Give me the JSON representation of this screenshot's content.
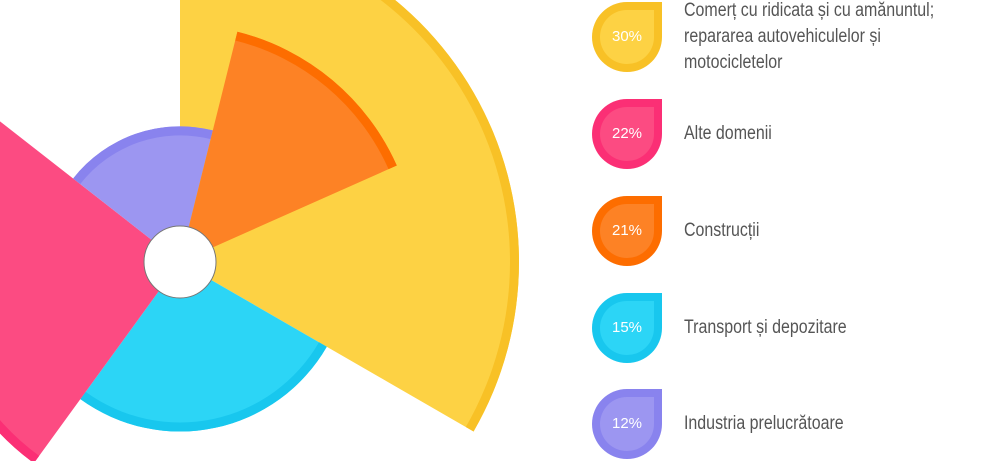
{
  "chart_data": {
    "type": "polar-area",
    "title": "",
    "series": [
      {
        "label": "Comerț cu ridicata și cu amănuntul;\nrepararea autovehiculelor și motocicletelor",
        "value": 30,
        "value_label": "30%",
        "color": "#fdd244",
        "edge_color": "#f8c126"
      },
      {
        "label": "Alte domenii",
        "value": 22,
        "value_label": "22%",
        "color": "#fc4b82",
        "edge_color": "#fb2f75"
      },
      {
        "label": "Construcții",
        "value": 21,
        "value_label": "21%",
        "color": "#fd8225",
        "edge_color": "#fd6d00"
      },
      {
        "label": "Transport și depozitare",
        "value": 15,
        "value_label": "15%",
        "color": "#2cd5f6",
        "edge_color": "#18c7ee"
      },
      {
        "label": "Industria prelucrătoare",
        "value": 12,
        "value_label": "12%",
        "color": "#9c96f1",
        "edge_color": "#8983ee"
      }
    ],
    "legend_position": "right",
    "label_color": "#555555"
  }
}
